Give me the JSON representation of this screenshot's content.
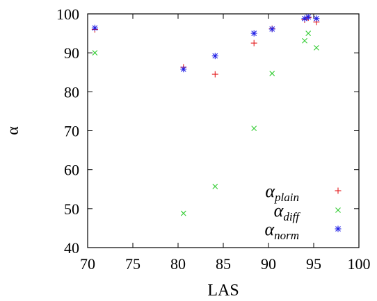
{
  "chart_data": {
    "type": "scatter",
    "xlabel": "LAS",
    "ylabel": "α",
    "xlim": [
      70,
      100
    ],
    "ylim": [
      40,
      100
    ],
    "xticks": [
      70,
      75,
      80,
      85,
      90,
      95,
      100
    ],
    "yticks": [
      40,
      50,
      60,
      70,
      80,
      90,
      100
    ],
    "grid": false,
    "legend_position": "bottom-right",
    "series": [
      {
        "name": "α_plain",
        "base": "α",
        "sub": "plain",
        "marker": "plus",
        "color": "#e41a1c",
        "points": [
          [
            70.8,
            96.0
          ],
          [
            80.6,
            86.3
          ],
          [
            84.1,
            84.5
          ],
          [
            88.4,
            92.5
          ],
          [
            90.4,
            96.2
          ],
          [
            94.0,
            98.5
          ],
          [
            94.4,
            99.0
          ],
          [
            95.3,
            97.9
          ]
        ]
      },
      {
        "name": "α_diff",
        "base": "α",
        "sub": "diff",
        "marker": "cross",
        "color": "#33cc33",
        "points": [
          [
            70.8,
            90.0
          ],
          [
            80.6,
            48.8
          ],
          [
            84.1,
            55.7
          ],
          [
            88.4,
            70.6
          ],
          [
            90.4,
            84.7
          ],
          [
            94.0,
            93.1
          ],
          [
            94.4,
            95.0
          ],
          [
            95.3,
            91.3
          ]
        ]
      },
      {
        "name": "α_norm",
        "base": "α",
        "sub": "norm",
        "marker": "asterisk",
        "color": "#1f1fe6",
        "points": [
          [
            70.8,
            96.4
          ],
          [
            80.6,
            85.8
          ],
          [
            84.1,
            89.2
          ],
          [
            88.4,
            95.0
          ],
          [
            90.4,
            96.1
          ],
          [
            94.0,
            98.8
          ],
          [
            94.4,
            99.2
          ],
          [
            95.3,
            98.8
          ]
        ]
      }
    ]
  }
}
